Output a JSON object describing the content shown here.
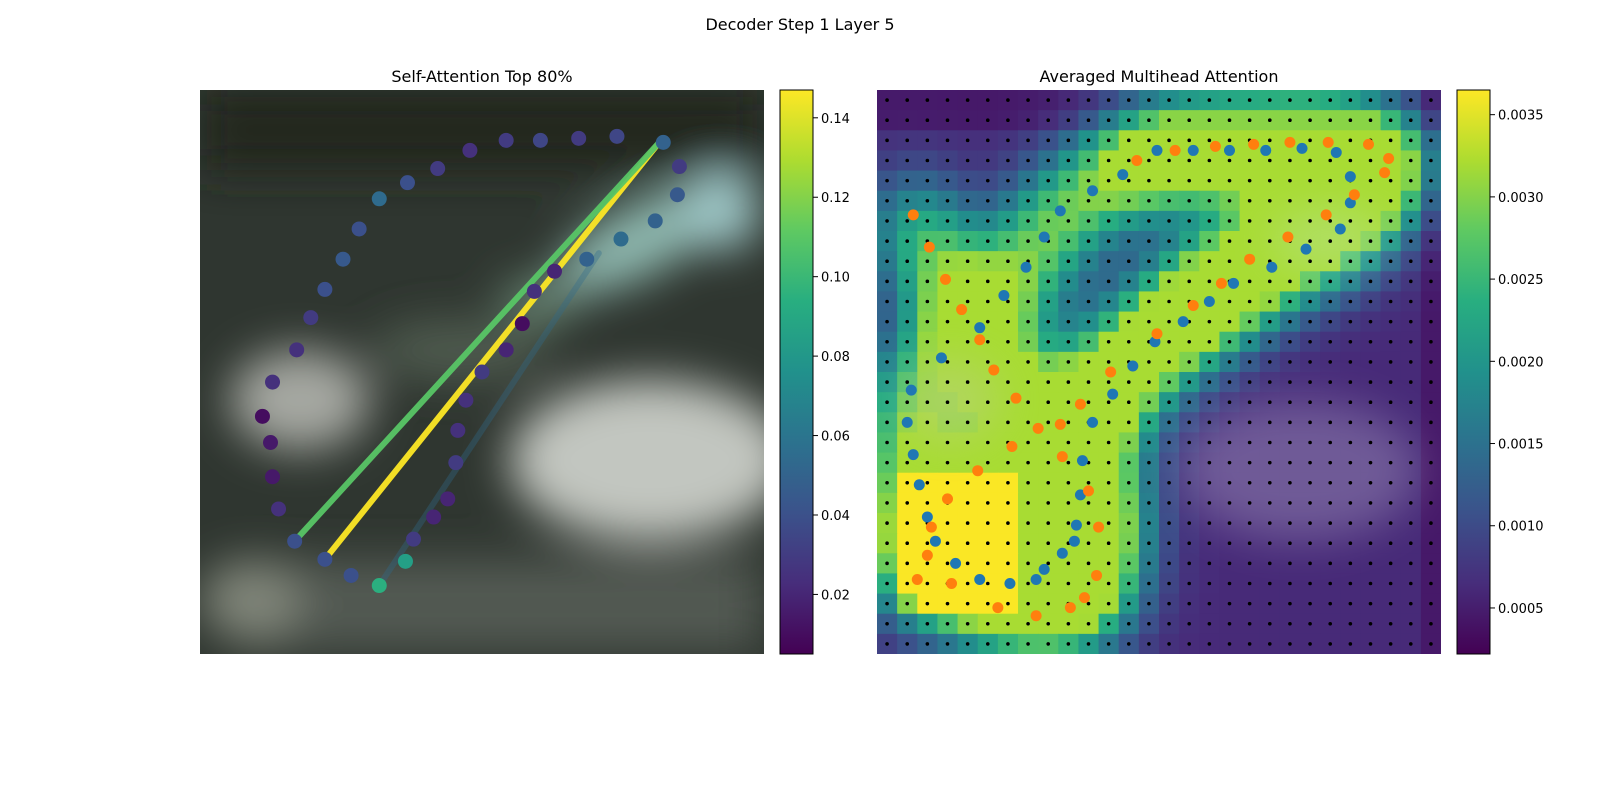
{
  "figure": {
    "title": "Decoder Step 1 Layer 5"
  },
  "chart_data": [
    {
      "type": "scatter",
      "title": "Self-Attention Top 80%",
      "background": "blurred camera image",
      "colormap": "viridis",
      "colorbar": {
        "range": [
          0.005,
          0.147
        ],
        "ticks": [
          0.02,
          0.04,
          0.06,
          0.08,
          0.1,
          0.12,
          0.14
        ],
        "tick_labels": [
          "0.02",
          "0.04",
          "0.06",
          "0.08",
          "0.10",
          "0.12",
          "0.14"
        ]
      },
      "xlim": [
        0,
        28
      ],
      "ylim": [
        28,
        0
      ],
      "grid": false,
      "points": [
        {
          "x": 23.0,
          "y": 2.6,
          "v": 0.05
        },
        {
          "x": 23.8,
          "y": 3.8,
          "v": 0.03
        },
        {
          "x": 23.7,
          "y": 5.2,
          "v": 0.045
        },
        {
          "x": 22.6,
          "y": 6.5,
          "v": 0.05
        },
        {
          "x": 20.9,
          "y": 7.4,
          "v": 0.055
        },
        {
          "x": 19.2,
          "y": 8.4,
          "v": 0.05
        },
        {
          "x": 17.6,
          "y": 9.0,
          "v": 0.02
        },
        {
          "x": 16.6,
          "y": 10.0,
          "v": 0.025
        },
        {
          "x": 16.0,
          "y": 11.6,
          "v": 0.01
        },
        {
          "x": 15.2,
          "y": 12.9,
          "v": 0.02
        },
        {
          "x": 14.0,
          "y": 14.0,
          "v": 0.03
        },
        {
          "x": 13.2,
          "y": 15.4,
          "v": 0.025
        },
        {
          "x": 12.8,
          "y": 16.9,
          "v": 0.025
        },
        {
          "x": 12.7,
          "y": 18.5,
          "v": 0.03
        },
        {
          "x": 12.3,
          "y": 20.3,
          "v": 0.02
        },
        {
          "x": 11.6,
          "y": 21.2,
          "v": 0.02
        },
        {
          "x": 10.6,
          "y": 22.3,
          "v": 0.03
        },
        {
          "x": 10.2,
          "y": 23.4,
          "v": 0.085
        },
        {
          "x": 8.9,
          "y": 24.6,
          "v": 0.095
        },
        {
          "x": 7.5,
          "y": 24.1,
          "v": 0.04
        },
        {
          "x": 6.2,
          "y": 23.3,
          "v": 0.04
        },
        {
          "x": 4.7,
          "y": 22.4,
          "v": 0.04
        },
        {
          "x": 3.9,
          "y": 20.8,
          "v": 0.025
        },
        {
          "x": 3.6,
          "y": 19.2,
          "v": 0.015
        },
        {
          "x": 3.5,
          "y": 17.5,
          "v": 0.015
        },
        {
          "x": 3.1,
          "y": 16.2,
          "v": 0.01
        },
        {
          "x": 3.6,
          "y": 14.5,
          "v": 0.025
        },
        {
          "x": 4.8,
          "y": 12.9,
          "v": 0.025
        },
        {
          "x": 5.5,
          "y": 11.3,
          "v": 0.03
        },
        {
          "x": 6.2,
          "y": 9.9,
          "v": 0.04
        },
        {
          "x": 7.1,
          "y": 8.4,
          "v": 0.045
        },
        {
          "x": 7.9,
          "y": 6.9,
          "v": 0.04
        },
        {
          "x": 8.9,
          "y": 5.4,
          "v": 0.055
        },
        {
          "x": 10.3,
          "y": 4.6,
          "v": 0.04
        },
        {
          "x": 11.8,
          "y": 3.9,
          "v": 0.03
        },
        {
          "x": 13.4,
          "y": 3.0,
          "v": 0.025
        },
        {
          "x": 15.2,
          "y": 2.5,
          "v": 0.03
        },
        {
          "x": 16.9,
          "y": 2.5,
          "v": 0.035
        },
        {
          "x": 18.8,
          "y": 2.4,
          "v": 0.03
        },
        {
          "x": 20.7,
          "y": 2.3,
          "v": 0.035
        }
      ],
      "attention_lines": [
        {
          "from": [
            22.8,
            2.6
          ],
          "to": [
            6.2,
            23.3
          ],
          "v": 0.147
        },
        {
          "from": [
            22.8,
            2.6
          ],
          "to": [
            4.7,
            22.4
          ],
          "v": 0.11
        },
        {
          "from": [
            19.8,
            8.1
          ],
          "to": [
            8.9,
            24.6
          ],
          "v": 0.055
        }
      ]
    },
    {
      "type": "heatmap",
      "title": "Averaged Multihead Attention",
      "colormap": "viridis",
      "colorbar": {
        "range": [
          0.00022,
          0.00365
        ],
        "ticks": [
          0.0005,
          0.001,
          0.0015,
          0.002,
          0.0025,
          0.003,
          0.0035
        ],
        "tick_labels": [
          "0.0005",
          "0.0010",
          "0.0015",
          "0.0020",
          "0.0025",
          "0.0030",
          "0.0035"
        ]
      },
      "grid_size": 28,
      "overlay_series": [
        {
          "marker": "reference points (black dots, regular grid)"
        },
        {
          "color": "#1f77b4",
          "points": [
            [
              13.4,
              2.5
            ],
            [
              15.2,
              2.5
            ],
            [
              17.0,
              2.5
            ],
            [
              18.8,
              2.5
            ],
            [
              20.6,
              2.4
            ],
            [
              22.3,
              2.6
            ],
            [
              23.0,
              3.8
            ],
            [
              23.0,
              5.1
            ],
            [
              22.5,
              6.4
            ],
            [
              20.8,
              7.4
            ],
            [
              19.1,
              8.3
            ],
            [
              17.2,
              9.1
            ],
            [
              16.0,
              10.0
            ],
            [
              14.7,
              11.0
            ],
            [
              13.3,
              12.0
            ],
            [
              12.2,
              13.2
            ],
            [
              11.2,
              14.6
            ],
            [
              10.2,
              16.0
            ],
            [
              9.7,
              17.9
            ],
            [
              9.6,
              19.6
            ],
            [
              9.4,
              21.1
            ],
            [
              9.3,
              21.9
            ],
            [
              8.7,
              22.5
            ],
            [
              7.8,
              23.3
            ],
            [
              7.4,
              23.8
            ],
            [
              6.1,
              24.0
            ],
            [
              4.6,
              23.8
            ],
            [
              3.4,
              23.0
            ],
            [
              2.4,
              21.9
            ],
            [
              2.0,
              20.7
            ],
            [
              1.6,
              19.1
            ],
            [
              1.3,
              17.6
            ],
            [
              1.0,
              16.0
            ],
            [
              1.2,
              14.4
            ],
            [
              2.7,
              12.8
            ],
            [
              4.6,
              11.3
            ],
            [
              5.8,
              9.7
            ],
            [
              6.9,
              8.3
            ],
            [
              7.8,
              6.8
            ],
            [
              8.6,
              5.5
            ],
            [
              10.2,
              4.5
            ],
            [
              11.7,
              3.7
            ]
          ]
        },
        {
          "color": "#ff7f0e",
          "points": [
            [
              12.4,
              3.0
            ],
            [
              14.3,
              2.5
            ],
            [
              16.3,
              2.3
            ],
            [
              18.2,
              2.2
            ],
            [
              20.0,
              2.1
            ],
            [
              21.9,
              2.1
            ],
            [
              23.9,
              2.2
            ],
            [
              24.9,
              2.9
            ],
            [
              24.7,
              3.6
            ],
            [
              23.2,
              4.7
            ],
            [
              21.8,
              5.7
            ],
            [
              19.9,
              6.8
            ],
            [
              18.0,
              7.9
            ],
            [
              16.6,
              9.1
            ],
            [
              15.2,
              10.2
            ],
            [
              13.4,
              11.6
            ],
            [
              11.1,
              13.5
            ],
            [
              9.6,
              15.1
            ],
            [
              8.6,
              16.1
            ],
            [
              6.2,
              17.2
            ],
            [
              4.5,
              18.4
            ],
            [
              3.0,
              19.8
            ],
            [
              2.2,
              21.2
            ],
            [
              2.0,
              22.6
            ],
            [
              1.5,
              23.8
            ],
            [
              3.2,
              24.0
            ],
            [
              5.5,
              25.2
            ],
            [
              7.4,
              25.6
            ],
            [
              9.1,
              25.2
            ],
            [
              9.8,
              24.7
            ],
            [
              10.4,
              23.6
            ],
            [
              10.5,
              21.2
            ],
            [
              10.0,
              19.4
            ],
            [
              8.7,
              17.7
            ],
            [
              7.5,
              16.3
            ],
            [
              6.4,
              14.8
            ],
            [
              5.3,
              13.4
            ],
            [
              4.6,
              11.9
            ],
            [
              3.7,
              10.4
            ],
            [
              2.9,
              8.9
            ],
            [
              2.1,
              7.3
            ],
            [
              1.3,
              5.7
            ]
          ]
        }
      ]
    }
  ]
}
